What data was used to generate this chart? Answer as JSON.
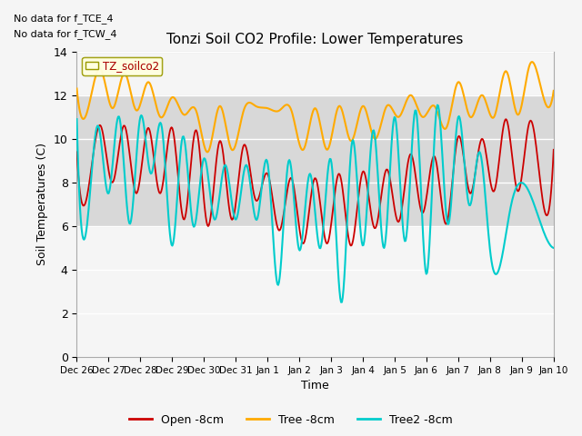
{
  "title": "Tonzi Soil CO2 Profile: Lower Temperatures",
  "ylabel": "Soil Temperatures (C)",
  "xlabel": "Time",
  "ylim": [
    0,
    14
  ],
  "annotation1": "No data for f_TCE_4",
  "annotation2": "No data for f_TCW_4",
  "legend_box_label": "TZ_soilco2",
  "legend_entries": [
    "Open -8cm",
    "Tree -8cm",
    "Tree2 -8cm"
  ],
  "line_colors": [
    "#cc0000",
    "#ffaa00",
    "#00cccc"
  ],
  "gray_band_lo": 6.0,
  "gray_band_hi": 12.0,
  "x_tick_labels": [
    "Dec 26",
    "Dec 27",
    "Dec 28",
    "Dec 29",
    "Dec 30",
    "Dec 31",
    "Jan 1",
    "Jan 2",
    "Jan 3",
    "Jan 4",
    "Jan 5",
    "Jan 6",
    "Jan 7",
    "Jan 8",
    "Jan 9",
    "Jan 10"
  ],
  "open_peaks": [
    9.4,
    10.6,
    10.6,
    10.5,
    10.5,
    10.4,
    9.9,
    9.7,
    8.4,
    8.2,
    8.2,
    8.4,
    8.5,
    8.6,
    9.3,
    9.2,
    10.1,
    10.0,
    10.9,
    10.8,
    9.5
  ],
  "open_troughs": [
    7.8,
    8.0,
    7.5,
    7.5,
    6.3,
    6.0,
    6.3,
    7.2,
    5.8,
    5.2,
    5.2,
    5.1,
    5.9,
    6.2,
    6.6,
    6.1,
    7.5,
    7.6,
    7.6,
    7.5
  ],
  "tree_peaks": [
    12.3,
    13.2,
    13.0,
    12.6,
    11.9,
    11.3,
    11.5,
    11.3,
    11.4,
    11.3,
    11.4,
    11.5,
    11.5,
    11.5,
    12.0,
    11.5,
    12.6,
    12.0,
    13.1,
    13.4,
    12.2
  ],
  "tree_troughs": [
    11.5,
    11.4,
    11.3,
    11.0,
    11.1,
    9.4,
    9.5,
    11.5,
    11.3,
    9.5,
    9.5,
    9.9,
    10.0,
    11.0,
    11.0,
    10.5,
    11.0,
    11.0,
    11.1,
    12.2
  ],
  "tree2_peaks": [
    10.9,
    10.6,
    11.0,
    11.0,
    10.6,
    10.1,
    9.1,
    8.8,
    8.8,
    8.9,
    9.0,
    8.4,
    9.0,
    9.9,
    10.4,
    11.0,
    11.3,
    11.5,
    11.0,
    9.4
  ],
  "tree2_troughs": [
    6.2,
    7.5,
    6.1,
    8.4,
    5.1,
    6.0,
    6.3,
    6.3,
    6.3,
    3.3,
    4.9,
    5.0,
    2.5,
    5.1,
    5.0,
    5.3,
    3.8,
    6.1,
    7.0,
    4.9,
    7.0,
    7.2,
    5.0
  ]
}
